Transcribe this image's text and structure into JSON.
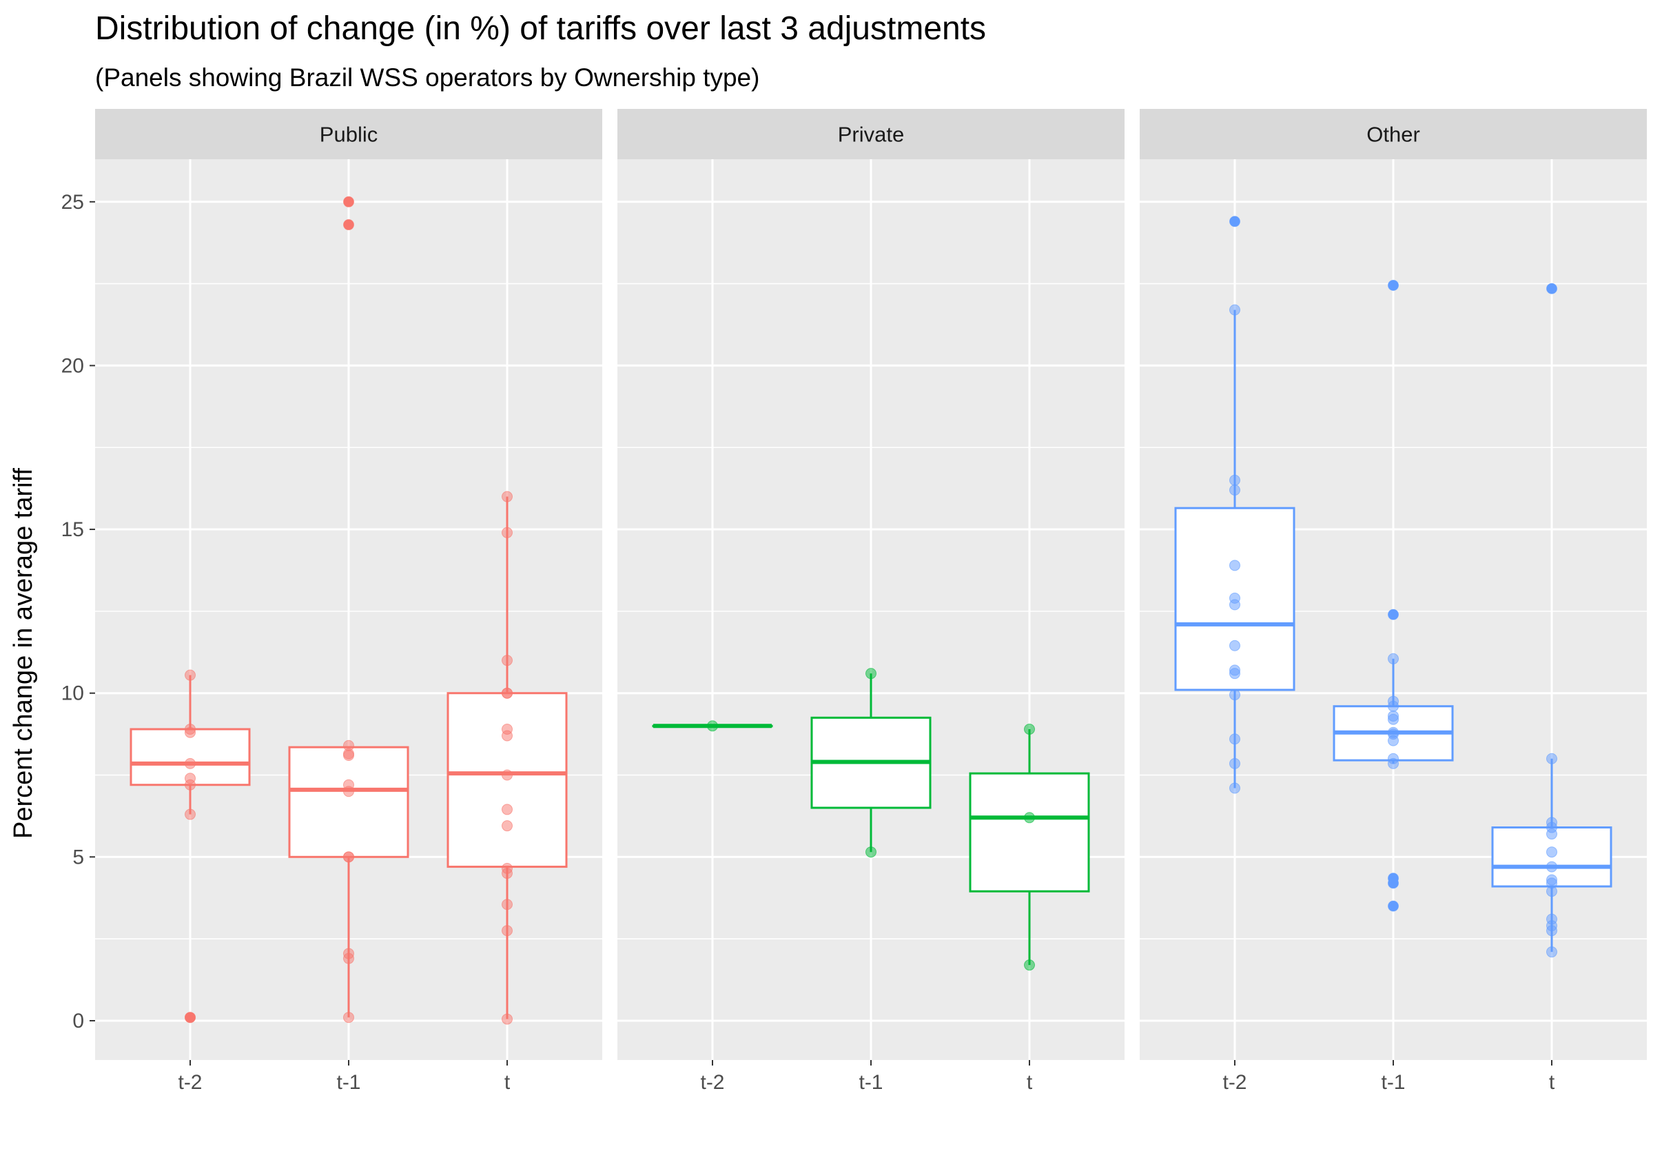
{
  "chart_data": {
    "type": "box",
    "title": "Distribution of change (in %) of tariffs over last 3 adjustments",
    "subtitle": "(Panels showing Brazil WSS operators by Ownership type)",
    "xlabel": "",
    "ylabel": "Percent change in average tariff",
    "ylim": [
      -1.2,
      26.3
    ],
    "yticks": [
      0,
      5,
      10,
      15,
      20,
      25
    ],
    "categories": [
      "t-2",
      "t-1",
      "t"
    ],
    "grid": true,
    "legend": "none",
    "panels": [
      {
        "name": "Public",
        "color": "#F8766D",
        "boxes": [
          {
            "x": "t-2",
            "lower_whisker": 6.3,
            "q1": 7.2,
            "median": 7.85,
            "q3": 8.9,
            "upper_whisker": 10.55,
            "outliers": [
              0.1
            ],
            "points": [
              10.55,
              8.9,
              8.8,
              7.85,
              7.4,
              7.2,
              6.3,
              0.1,
              0.1
            ]
          },
          {
            "x": "t-1",
            "lower_whisker": 0.1,
            "q1": 5.0,
            "median": 7.05,
            "q3": 8.35,
            "upper_whisker": 8.35,
            "outliers": [
              25.0,
              24.3
            ],
            "points": [
              25.0,
              24.3,
              8.4,
              8.15,
              8.1,
              7.2,
              7.0,
              5.0,
              5.0,
              2.05,
              1.9,
              0.1
            ]
          },
          {
            "x": "t",
            "lower_whisker": 0.05,
            "q1": 4.7,
            "median": 7.55,
            "q3": 10.0,
            "upper_whisker": 16.0,
            "outliers": [],
            "points": [
              16.0,
              14.9,
              11.0,
              10.0,
              10.0,
              8.9,
              8.7,
              7.5,
              6.45,
              5.95,
              4.65,
              4.5,
              3.55,
              2.75,
              0.05
            ]
          }
        ]
      },
      {
        "name": "Private",
        "color": "#00BA38",
        "boxes": [
          {
            "x": "t-2",
            "lower_whisker": 9.0,
            "q1": 9.0,
            "median": 9.0,
            "q3": 9.0,
            "upper_whisker": 9.0,
            "outliers": [],
            "points": [
              9.0
            ]
          },
          {
            "x": "t-1",
            "lower_whisker": 5.15,
            "q1": 6.5,
            "median": 7.9,
            "q3": 9.25,
            "upper_whisker": 10.6,
            "outliers": [],
            "points": [
              10.6,
              5.15
            ]
          },
          {
            "x": "t",
            "lower_whisker": 1.7,
            "q1": 3.95,
            "median": 6.2,
            "q3": 7.55,
            "upper_whisker": 8.9,
            "outliers": [],
            "points": [
              8.9,
              6.2,
              1.7
            ]
          }
        ]
      },
      {
        "name": "Other",
        "color": "#619CFF",
        "boxes": [
          {
            "x": "t-2",
            "lower_whisker": 7.1,
            "q1": 10.1,
            "median": 12.1,
            "q3": 15.65,
            "upper_whisker": 21.7,
            "outliers": [
              24.4
            ],
            "points": [
              24.4,
              21.7,
              16.5,
              16.2,
              13.9,
              12.9,
              12.7,
              11.45,
              10.7,
              10.6,
              9.95,
              8.6,
              7.85,
              7.1
            ]
          },
          {
            "x": "t-1",
            "lower_whisker": 7.85,
            "q1": 7.95,
            "median": 8.8,
            "q3": 9.6,
            "upper_whisker": 11.05,
            "outliers": [
              22.45,
              12.4,
              4.35,
              4.2,
              3.5
            ],
            "points": [
              22.45,
              12.4,
              11.05,
              9.75,
              9.6,
              9.3,
              9.2,
              8.8,
              8.75,
              8.55,
              8.0,
              7.85,
              4.35,
              4.2,
              3.5
            ]
          },
          {
            "x": "t",
            "lower_whisker": 2.1,
            "q1": 4.1,
            "median": 4.7,
            "q3": 5.9,
            "upper_whisker": 8.0,
            "outliers": [
              22.35
            ],
            "points": [
              22.35,
              8.0,
              6.05,
              5.9,
              5.7,
              5.15,
              4.7,
              4.3,
              4.2,
              3.95,
              3.1,
              2.9,
              2.75,
              2.1
            ]
          }
        ]
      }
    ]
  }
}
